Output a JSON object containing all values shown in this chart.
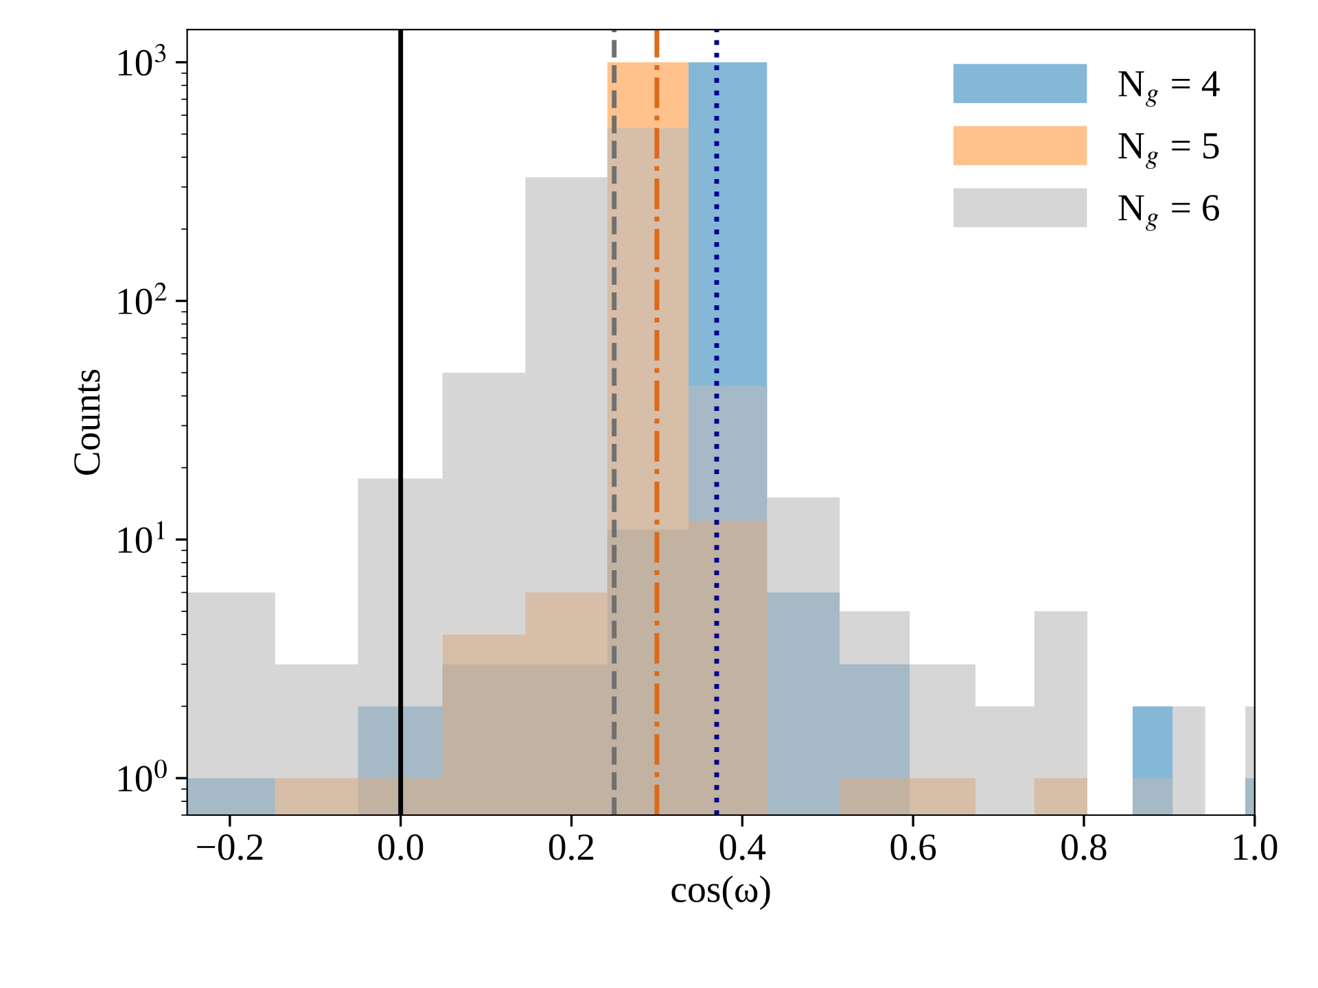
{
  "chart_data": {
    "type": "histogram",
    "xlabel": "cos(ω)",
    "ylabel": "Counts",
    "log": "y",
    "xlim": [
      -0.25,
      1.0
    ],
    "xticks": [
      {
        "value": -0.2,
        "label": "−0.2"
      },
      {
        "value": 0,
        "label": "0.0"
      },
      0.2,
      0.4,
      0.6,
      0.8,
      {
        "value": 1,
        "label": "1.0"
      }
    ],
    "ylim": [
      0.7,
      1370
    ],
    "yticks": [
      {
        "value": 1,
        "label": "10$^{0}$"
      },
      {
        "value": 10,
        "label": "10$^{1}$"
      },
      {
        "value": 100,
        "label": "10$^{2}$"
      },
      {
        "value": 1000,
        "label": "10$^{3}$"
      }
    ],
    "legend": "top right",
    "bins": [
      -0.25,
      -0.147,
      -0.05,
      0.049,
      0.146,
      0.242,
      0.337,
      0.429,
      0.514,
      0.596,
      0.673,
      0.742,
      0.804,
      0.857,
      0.904,
      0.942,
      0.989,
      1.0
    ],
    "series": [
      {
        "name": "N$_{g}$ = 4",
        "color": "#3388bb",
        "values": [
          1,
          null,
          2,
          3,
          3,
          11,
          1000,
          6,
          3,
          null,
          null,
          null,
          null,
          2,
          null,
          null,
          1
        ]
      },
      {
        "name": "N$_{g}$ = 5",
        "color": "#ff9940",
        "values": [
          null,
          1,
          1,
          4,
          6,
          1000,
          12,
          null,
          1,
          1,
          null,
          1,
          null,
          null,
          null,
          null,
          null
        ]
      },
      {
        "name": "N$_{g}$ = 6",
        "color": "#bbbbbb",
        "values": [
          6,
          3,
          18,
          50,
          330,
          530,
          44,
          15,
          5,
          3,
          2,
          5,
          null,
          1,
          2,
          null,
          2
        ]
      }
    ],
    "ref_lines": [
      {
        "axis": "x",
        "value": 0.0,
        "color": "#000000",
        "line_style": "solid"
      },
      {
        "axis": "x",
        "value": 0.25,
        "color": "#707070",
        "line_style": "dashed"
      },
      {
        "axis": "x",
        "value": 0.3,
        "color": "#dd6a1a",
        "line_style": "dashdot"
      },
      {
        "axis": "x",
        "value": 0.37,
        "color": "#00008b",
        "line_style": "dotted"
      }
    ]
  }
}
